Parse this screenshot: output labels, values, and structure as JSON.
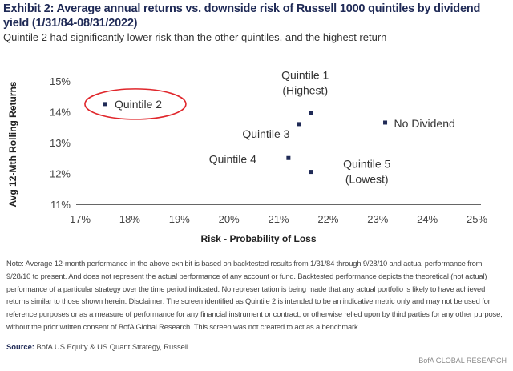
{
  "title": "Exhibit 2: Average annual returns vs. downside risk of Russell 1000 quintiles by dividend yield (1/31/84-08/31/2022)",
  "subtitle": "Quintile 2 had significantly lower risk than the other quintiles, and the highest return",
  "chart_data": {
    "type": "scatter",
    "xlabel": "Risk - Probability of Loss",
    "ylabel": "Avg 12-Mth Rolling Returns",
    "xlim": [
      17,
      25
    ],
    "ylim": [
      11,
      15
    ],
    "xticks": [
      "17%",
      "18%",
      "19%",
      "20%",
      "21%",
      "22%",
      "23%",
      "24%",
      "25%"
    ],
    "yticks": [
      "11%",
      "12%",
      "13%",
      "14%",
      "15%"
    ],
    "points": [
      {
        "label": "Quintile 2",
        "x": 17.5,
        "y": 14.25,
        "highlight": true
      },
      {
        "label": "Quintile 1 (Highest)",
        "x": 21.65,
        "y": 13.95
      },
      {
        "label": "Quintile 3",
        "x": 21.42,
        "y": 13.6
      },
      {
        "label": "No Dividend",
        "x": 23.15,
        "y": 13.65
      },
      {
        "label": "Quintile 4",
        "x": 21.2,
        "y": 12.5
      },
      {
        "label": "Quintile 5 (Lowest)",
        "x": 21.65,
        "y": 12.05
      }
    ],
    "colors": {
      "marker": "#1f2a56",
      "highlight": "#e0262b"
    }
  },
  "note": "Note: Average 12-month performance in the above exhibit is based on backtested results from 1/31/84 through 9/28/10 and actual performance from 9/28/10 to present. And does not represent the actual performance of any account or fund. Backtested performance depicts the theoretical (not actual) performance of a particular strategy over the time period indicated. No representation is being made that any actual portfolio is likely to have achieved returns similar to those shown herein. Disclaimer: The screen identified as Quintile 2 is intended to be an indicative metric only and may not be used for reference purposes or as a measure of performance for any financial instrument or contract, or otherwise relied upon by third parties for any other purpose, without the prior written consent of BofA Global Research. This screen was not created to act as a benchmark.",
  "source_label": "Source:",
  "source": "BofA US Equity & US Quant Strategy, Russell",
  "brand": "BofA GLOBAL RESEARCH"
}
